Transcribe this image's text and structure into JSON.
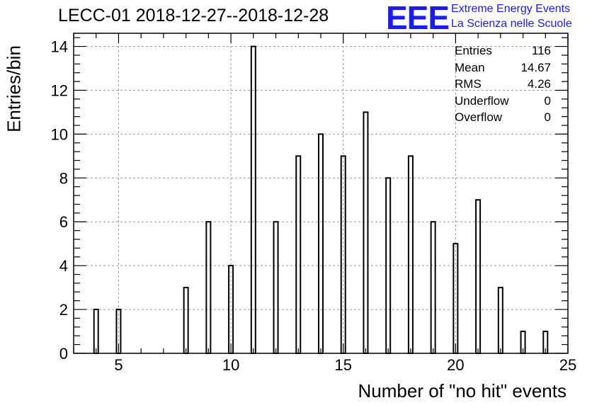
{
  "title": "LECC-01 2018-12-27--2018-12-28",
  "logo": {
    "letters": "EEE",
    "line1": "Extreme Energy Events",
    "line2": "La Scienza nelle Scuole",
    "color": "#1a1aff"
  },
  "stats": [
    {
      "label": "Entries",
      "value": "116"
    },
    {
      "label": "Mean",
      "value": "14.67"
    },
    {
      "label": "RMS",
      "value": "4.26"
    },
    {
      "label": "Underflow",
      "value": "0"
    },
    {
      "label": "Overflow",
      "value": "0"
    }
  ],
  "chart_data": {
    "type": "bar",
    "title": "LECC-01 2018-12-27--2018-12-28",
    "xlabel": "Number of \"no hit\" events",
    "ylabel": "Entries/bin",
    "xlim": [
      3,
      25
    ],
    "ylim": [
      0,
      14.6
    ],
    "xticks": [
      5,
      10,
      15,
      20,
      25
    ],
    "yticks": [
      0,
      2,
      4,
      6,
      8,
      10,
      12,
      14
    ],
    "grid": true,
    "x": [
      4,
      5,
      8,
      9,
      10,
      11,
      12,
      13,
      14,
      15,
      16,
      17,
      18,
      19,
      20,
      21,
      22,
      23,
      24
    ],
    "values": [
      2,
      2,
      3,
      6,
      4,
      14,
      6,
      9,
      10,
      9,
      11,
      8,
      9,
      6,
      5,
      7,
      3,
      1,
      1
    ]
  }
}
